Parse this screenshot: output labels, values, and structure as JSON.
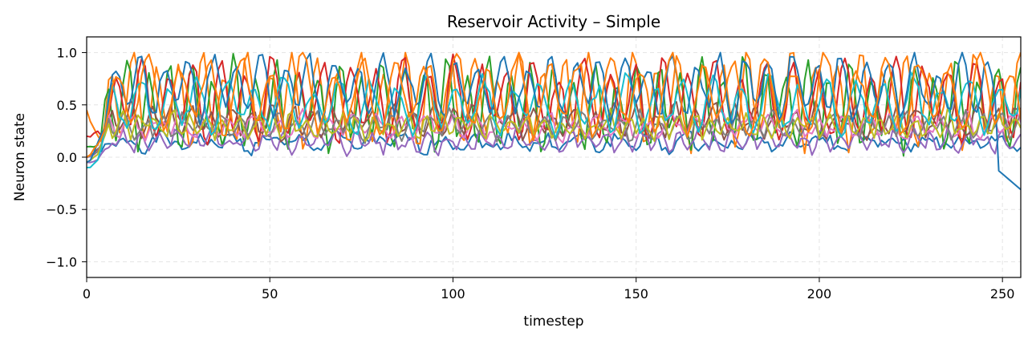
{
  "chart_data": {
    "type": "line",
    "title": "Reservoir Activity – Simple",
    "xlabel": "timestep",
    "ylabel": "Neuron state",
    "xlim": [
      0,
      255
    ],
    "ylim": [
      -1.15,
      1.15
    ],
    "xticks": [
      0,
      50,
      100,
      150,
      200,
      250
    ],
    "yticks": [
      -1.0,
      -0.5,
      0.0,
      0.5,
      1.0
    ],
    "ytick_labels": [
      "−1.0",
      "−0.5",
      "0.0",
      "0.5",
      "1.0"
    ],
    "grid": true,
    "legend": "none",
    "n_timesteps": 256,
    "series": [
      {
        "color": "#1f77b4",
        "base": 0.14,
        "amp": 0.07,
        "period": 9.5,
        "phase": 0.3,
        "start": 0.0,
        "dip": 0.0,
        "seed": 1
      },
      {
        "color": "#ff7f0e",
        "base": 0.55,
        "amp": 0.48,
        "period": 6.2,
        "phase": 1.1,
        "start": 0.45,
        "dip": -0.43,
        "seed": 2
      },
      {
        "color": "#2ca02c",
        "base": 0.5,
        "amp": 0.45,
        "period": 5.8,
        "phase": 2.0,
        "start": 0.1,
        "dip": 0.0,
        "seed": 3
      },
      {
        "color": "#d62728",
        "base": 0.55,
        "amp": 0.42,
        "period": 7.1,
        "phase": 0.7,
        "start": 0.2,
        "dip": 0.0,
        "seed": 4
      },
      {
        "color": "#9467bd",
        "base": 0.15,
        "amp": 0.1,
        "period": 4.9,
        "phase": 1.7,
        "start": -0.05,
        "dip": -0.1,
        "seed": 5
      },
      {
        "color": "#8c564b",
        "base": 0.35,
        "amp": 0.15,
        "period": 5.5,
        "phase": 0.4,
        "start": 0.0,
        "dip": 0.0,
        "seed": 6
      },
      {
        "color": "#e377c2",
        "base": 0.3,
        "amp": 0.12,
        "period": 6.7,
        "phase": 2.6,
        "start": 0.0,
        "dip": 0.0,
        "seed": 7
      },
      {
        "color": "#7f7f7f",
        "base": 0.3,
        "amp": 0.12,
        "period": 5.2,
        "phase": 1.3,
        "start": 0.0,
        "dip": 0.0,
        "seed": 8
      },
      {
        "color": "#bcbd22",
        "base": 0.3,
        "amp": 0.12,
        "period": 4.6,
        "phase": 0.9,
        "start": -0.05,
        "dip": 0.0,
        "seed": 9
      },
      {
        "color": "#17becf",
        "base": 0.5,
        "amp": 0.28,
        "period": 7.8,
        "phase": 2.2,
        "start": -0.1,
        "dip": -0.22,
        "seed": 10
      },
      {
        "color": "#1f77b4",
        "base": 0.68,
        "amp": 0.32,
        "period": 6.6,
        "phase": 0.2,
        "start": -0.05,
        "dip": -0.1,
        "seed": 11
      },
      {
        "color": "#ff7f0e",
        "base": 0.6,
        "amp": 0.4,
        "period": 8.4,
        "phase": 1.5,
        "start": 0.0,
        "dip": 0.0,
        "seed": 12
      }
    ]
  }
}
